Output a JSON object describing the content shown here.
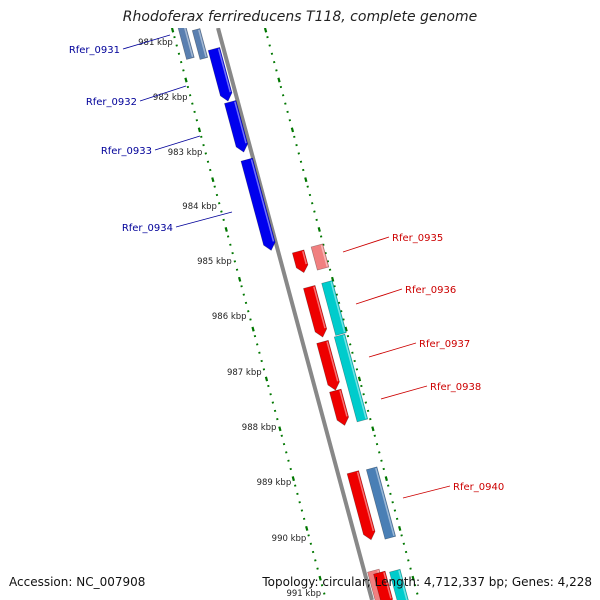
{
  "title": "Rhodoferax ferrireducens T118, complete genome",
  "accession_label": "Accession: NC_007908",
  "info_label": "Topology: circular; Length: 4,712,337 bp; Genes: 4,228",
  "colors": {
    "forward_cds": "#0000ee",
    "forward_faded": "#5a7fb0",
    "reverse_cds": "#ee0000",
    "reverse_faded": "#f08080",
    "rna_strip": "#00cccc",
    "strip_dark": "#4a7fb5",
    "backbone": "#888888",
    "tick": "#007700",
    "forward_label": "#000099",
    "reverse_label": "#cc0000"
  },
  "ticks": [
    {
      "label": "981 kbp"
    },
    {
      "label": "982 kbp"
    },
    {
      "label": "983 kbp"
    },
    {
      "label": "984 kbp"
    },
    {
      "label": "985 kbp"
    },
    {
      "label": "986 kbp"
    },
    {
      "label": "987 kbp"
    },
    {
      "label": "988 kbp"
    },
    {
      "label": "989 kbp"
    },
    {
      "label": "990 kbp"
    },
    {
      "label": "991 kbp"
    }
  ],
  "forward_genes": [
    {
      "name": "Rfer_0931"
    },
    {
      "name": "Rfer_0932"
    },
    {
      "name": "Rfer_0933"
    },
    {
      "name": "Rfer_0934"
    }
  ],
  "reverse_genes": [
    {
      "name": "Rfer_0935"
    },
    {
      "name": "Rfer_0936"
    },
    {
      "name": "Rfer_0937"
    },
    {
      "name": "Rfer_0938"
    },
    {
      "name": "Rfer_0940"
    }
  ]
}
